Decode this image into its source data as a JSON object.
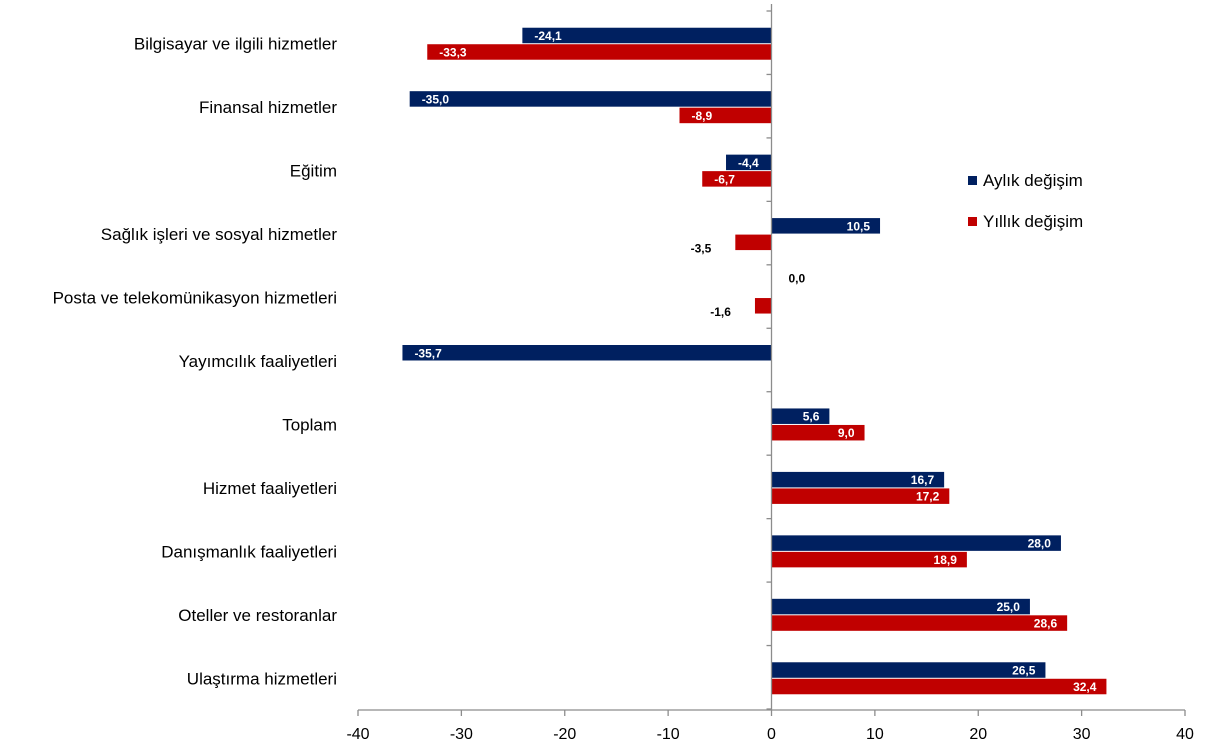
{
  "chart_data": {
    "type": "bar",
    "orientation": "horizontal",
    "categories": [
      "Bilgisayar ve ilgili hizmetler",
      "Finansal hizmetler",
      "Eğitim",
      "Sağlık işleri ve sosyal hizmetler",
      "Posta ve telekomünikasyon hizmetleri",
      "Yayımcılık faaliyetleri",
      "Toplam",
      "Hizmet faaliyetleri",
      "Danışmanlık faaliyetleri",
      "Oteller ve restoranlar",
      "Ulaştırma hizmetleri"
    ],
    "series": [
      {
        "name": "Aylık değişim",
        "color": "#002060",
        "values": [
          -24.1,
          -35.0,
          -4.4,
          10.5,
          0.0,
          -35.7,
          5.6,
          16.7,
          28.0,
          25.0,
          26.5
        ],
        "labels": [
          "-24,1",
          "-35,0",
          "-4,4",
          "10,5",
          "0,0",
          "-35,7",
          "5,6",
          "16,7",
          "28,0",
          "25,0",
          "26,5"
        ]
      },
      {
        "name": "Yıllık değişim",
        "color": "#C00000",
        "values": [
          -33.3,
          -8.9,
          -6.7,
          -3.5,
          -1.6,
          null,
          9.0,
          17.2,
          18.9,
          28.6,
          32.4
        ],
        "labels": [
          "-33,3",
          "-8,9",
          "-6,7",
          "-3,5",
          "-1,6",
          "",
          "9,0",
          "17,2",
          "18,9",
          "28,6",
          "32,4"
        ]
      }
    ],
    "xlim": [
      -40,
      40
    ],
    "xticks": [
      -40,
      -30,
      -20,
      -10,
      0,
      10,
      20,
      30,
      40
    ],
    "xtick_labels": [
      "-40",
      "-30",
      "-20",
      "-10",
      "0",
      "10",
      "20",
      "30",
      "40"
    ],
    "grid": false,
    "legend_position": "right"
  }
}
